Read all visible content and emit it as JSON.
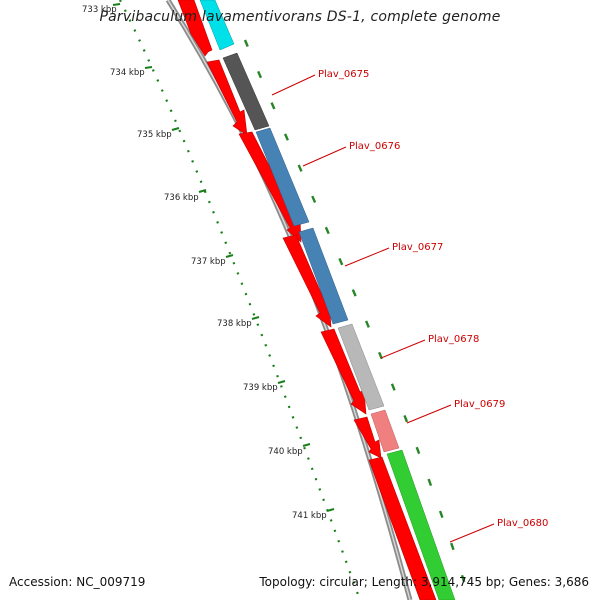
{
  "title": "Parvibaculum lavamentivorans DS-1, complete genome",
  "footer": {
    "accession": "Accession: NC_009719",
    "summary": "Topology: circular; Length: 3,914,745 bp; Genes: 3,686"
  },
  "ticks": [
    "733 kbp",
    "734 kbp",
    "735 kbp",
    "736 kbp",
    "737 kbp",
    "738 kbp",
    "739 kbp",
    "740 kbp",
    "741 kbp"
  ],
  "gene_labels": [
    "Plav_0675",
    "Plav_0676",
    "Plav_0677",
    "Plav_0678",
    "Plav_0679",
    "Plav_0680"
  ],
  "colors": {
    "backbone": "#8c8c8c",
    "forward_gene": "#ff0000",
    "cog_cyan": "#00e0e8",
    "cog_dark_gray": "#555555",
    "cog_blue": "#4682b4",
    "cog_light_gray": "#b8b8b8",
    "cog_salmon": "#f08080",
    "cog_green": "#32cd32",
    "ruler": "#1a7f1a",
    "label": "#cc0000"
  }
}
